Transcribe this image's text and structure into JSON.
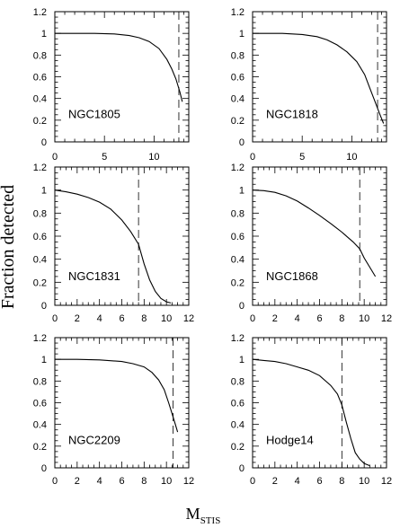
{
  "figure": {
    "ylabel": "Fraction detected",
    "xlabel_main": "M",
    "xlabel_sub": "STIS"
  },
  "chart_data": [
    {
      "type": "line",
      "name": "NGC1805",
      "xlim": [
        0,
        13.5
      ],
      "ylim": [
        0,
        1.2
      ],
      "xticks": [
        0,
        5,
        10
      ],
      "yticks": [
        0,
        0.2,
        0.4,
        0.6,
        0.8,
        1,
        1.2
      ],
      "show_x_ticklabels": false,
      "show_y_ticklabels": true,
      "completeness_limit": 12.5,
      "x": [
        0,
        4,
        6,
        7.5,
        8.5,
        9.5,
        10.5,
        11.3,
        11.8,
        12.2,
        12.6,
        12.85
      ],
      "y": [
        1.0,
        1.0,
        0.995,
        0.98,
        0.96,
        0.925,
        0.86,
        0.76,
        0.67,
        0.58,
        0.46,
        0.37
      ]
    },
    {
      "type": "line",
      "name": "NGC1818",
      "xlim": [
        0,
        13.5
      ],
      "ylim": [
        0,
        1.2
      ],
      "xticks": [
        0,
        5,
        10
      ],
      "yticks": [
        0,
        0.2,
        0.4,
        0.6,
        0.8,
        1,
        1.2
      ],
      "show_x_ticklabels": false,
      "show_y_ticklabels": true,
      "completeness_limit": 12.6,
      "x": [
        0,
        3,
        5,
        6.5,
        7.5,
        8.5,
        9.5,
        10.5,
        11.3,
        11.8,
        12.3,
        12.8,
        13.2
      ],
      "y": [
        1.0,
        1.0,
        0.99,
        0.97,
        0.94,
        0.895,
        0.83,
        0.74,
        0.62,
        0.5,
        0.38,
        0.26,
        0.17
      ]
    },
    {
      "type": "line",
      "name": "NGC1831",
      "xlim": [
        0,
        12
      ],
      "ylim": [
        0,
        1.2
      ],
      "xticks": [
        0,
        2,
        4,
        6,
        8,
        10,
        12
      ],
      "yticks": [
        0,
        0.2,
        0.4,
        0.6,
        0.8,
        1,
        1.2
      ],
      "show_x_ticklabels": true,
      "show_y_ticklabels": true,
      "completeness_limit": 7.5,
      "x": [
        0,
        1,
        2,
        3,
        4,
        5,
        6,
        6.8,
        7.5,
        8,
        8.5,
        9,
        9.5,
        10,
        10.4
      ],
      "y": [
        1.0,
        0.985,
        0.965,
        0.935,
        0.895,
        0.835,
        0.74,
        0.64,
        0.53,
        0.36,
        0.22,
        0.12,
        0.06,
        0.03,
        0.02
      ]
    },
    {
      "type": "line",
      "name": "NGC1868",
      "xlim": [
        0,
        12
      ],
      "ylim": [
        0,
        1.2
      ],
      "xticks": [
        0,
        2,
        4,
        6,
        8,
        10,
        12
      ],
      "yticks": [
        0,
        0.2,
        0.4,
        0.6,
        0.8,
        1,
        1.2
      ],
      "show_x_ticklabels": true,
      "show_y_ticklabels": true,
      "completeness_limit": 9.6,
      "x": [
        0,
        1,
        2,
        3,
        4,
        5,
        6,
        7,
        8,
        9,
        9.6,
        10,
        10.5,
        11
      ],
      "y": [
        1.0,
        0.995,
        0.98,
        0.95,
        0.905,
        0.845,
        0.78,
        0.71,
        0.635,
        0.55,
        0.49,
        0.41,
        0.33,
        0.25
      ]
    },
    {
      "type": "line",
      "name": "NGC2209",
      "xlim": [
        0,
        12
      ],
      "ylim": [
        0,
        1.2
      ],
      "xticks": [
        0,
        2,
        4,
        6,
        8,
        10,
        12
      ],
      "yticks": [
        0,
        0.2,
        0.4,
        0.6,
        0.8,
        1,
        1.2
      ],
      "show_x_ticklabels": true,
      "show_y_ticklabels": true,
      "completeness_limit": 10.6,
      "x": [
        0,
        2,
        4,
        6,
        7,
        8,
        8.7,
        9.3,
        9.8,
        10.2,
        10.5,
        10.8,
        11
      ],
      "y": [
        1.0,
        1.0,
        0.995,
        0.98,
        0.96,
        0.93,
        0.88,
        0.81,
        0.72,
        0.6,
        0.5,
        0.4,
        0.33
      ]
    },
    {
      "type": "line",
      "name": "Hodge14",
      "xlim": [
        0,
        12
      ],
      "ylim": [
        0,
        1.2
      ],
      "xticks": [
        0,
        2,
        4,
        6,
        8,
        10,
        12
      ],
      "yticks": [
        0,
        0.2,
        0.4,
        0.6,
        0.8,
        1,
        1.2
      ],
      "show_x_ticklabels": true,
      "show_y_ticklabels": true,
      "completeness_limit": 8.0,
      "x": [
        0,
        1,
        2,
        3,
        4,
        5,
        6,
        7,
        7.6,
        8,
        8.4,
        8.8,
        9.2,
        9.6,
        10,
        10.5
      ],
      "y": [
        1.0,
        0.99,
        0.98,
        0.96,
        0.93,
        0.9,
        0.85,
        0.76,
        0.68,
        0.58,
        0.42,
        0.27,
        0.14,
        0.08,
        0.04,
        0.02
      ]
    }
  ]
}
